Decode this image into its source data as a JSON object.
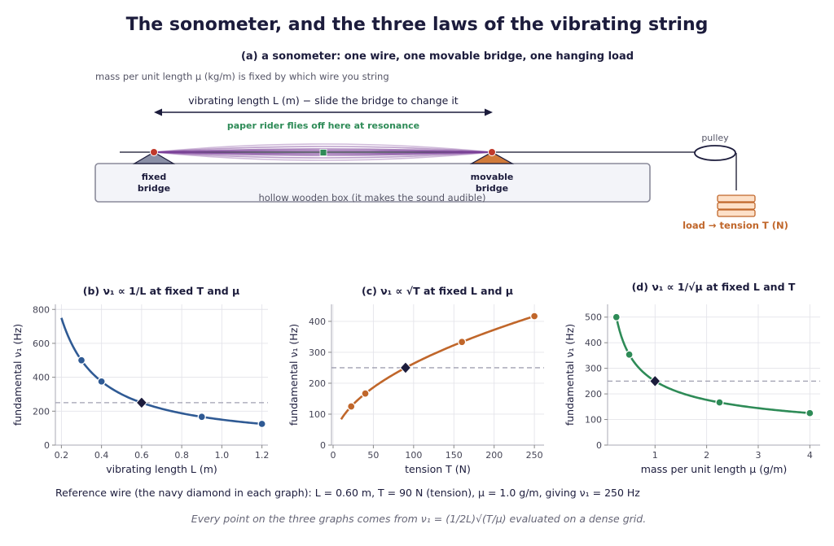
{
  "title": "The sonometer, and the three laws of the vibrating string",
  "sonometer": {
    "panel_title": "(a)  a sonometer: one wire, one movable bridge, one hanging load",
    "mass_note": "mass per unit length μ (kg/m) is fixed by which wire you string",
    "length_label": "vibrating length L (m)  −  slide the bridge to change it",
    "rider_note": "paper rider flies off here at resonance",
    "fixed_bridge": [
      "fixed",
      "bridge"
    ],
    "movable_bridge": [
      "movable",
      "bridge"
    ],
    "box_label": "hollow wooden box (it makes the sound audible)",
    "pulley_label": "pulley",
    "load_label": "load  →  tension T (N)"
  },
  "colors": {
    "navy": "#1c1c3c",
    "blue": "#2f5a94",
    "orange": "#c0662a",
    "green": "#2e8b57",
    "purple": "#7b3f98",
    "reference_line": "#a0a0b0"
  },
  "chart_data": [
    {
      "type": "line",
      "panel": "b",
      "title": "(b)  ν₁ ∝ 1/L  at fixed T and μ",
      "xlabel": "vibrating length L (m)",
      "ylabel": "fundamental ν₁ (Hz)",
      "xlim": [
        0.17,
        1.23
      ],
      "ylim": [
        0,
        830
      ],
      "xticks": [
        0.2,
        0.4,
        0.6,
        0.8,
        1.0,
        1.2
      ],
      "xtick_labels": [
        "0.2",
        "0.4",
        "0.6",
        "0.8",
        "1.0",
        "1.2"
      ],
      "yticks": [
        0,
        200,
        400,
        600,
        800
      ],
      "reference_y": 250,
      "grid": true,
      "color": "#2f5a94",
      "curve_x_range": [
        0.2,
        1.2
      ],
      "points": [
        {
          "x": 0.3,
          "y": 500
        },
        {
          "x": 0.4,
          "y": 375
        },
        {
          "x": 0.9,
          "y": 166.7
        },
        {
          "x": 1.2,
          "y": 125
        }
      ],
      "reference_point": {
        "x": 0.6,
        "y": 250
      }
    },
    {
      "type": "line",
      "panel": "c",
      "title": "(c)  ν₁ ∝ √T  at fixed L and μ",
      "xlabel": "tension T (N)",
      "ylabel": "fundamental ν₁ (Hz)",
      "xlim": [
        -2,
        262
      ],
      "ylim": [
        0,
        455
      ],
      "xticks": [
        0,
        50,
        100,
        150,
        200,
        250
      ],
      "xtick_labels": [
        "0",
        "50",
        "100",
        "150",
        "200",
        "250"
      ],
      "yticks": [
        0,
        100,
        200,
        300,
        400
      ],
      "reference_y": 250,
      "grid": true,
      "color": "#c0662a",
      "curve_x_range": [
        10,
        250
      ],
      "points": [
        {
          "x": 22.5,
          "y": 125
        },
        {
          "x": 40,
          "y": 166.7
        },
        {
          "x": 160,
          "y": 333.3
        },
        {
          "x": 250,
          "y": 416.7
        }
      ],
      "reference_point": {
        "x": 90,
        "y": 250
      }
    },
    {
      "type": "line",
      "panel": "d",
      "title": "(d)  ν₁ ∝ 1/√μ  at fixed L and T",
      "xlabel": "mass per unit length μ (g/m)",
      "ylabel": "fundamental ν₁ (Hz)",
      "xlim": [
        0.08,
        4.2
      ],
      "ylim": [
        0,
        550
      ],
      "xticks": [
        1,
        2,
        3,
        4
      ],
      "xtick_labels": [
        "1",
        "2",
        "3",
        "4"
      ],
      "yticks": [
        0,
        100,
        200,
        300,
        400,
        500
      ],
      "reference_y": 250,
      "grid": true,
      "color": "#2e8b57",
      "curve_x_range": [
        0.25,
        4.0
      ],
      "points": [
        {
          "x": 0.25,
          "y": 500
        },
        {
          "x": 0.5,
          "y": 353.6
        },
        {
          "x": 2.25,
          "y": 166.7
        },
        {
          "x": 4.0,
          "y": 125
        }
      ],
      "reference_point": {
        "x": 1.0,
        "y": 250
      }
    }
  ],
  "footer": {
    "reference_note": "Reference wire (the navy diamond in each graph): L = 0.60 m, T = 90 N (tension), μ = 1.0 g/m, giving ν₁ = 250 Hz",
    "formula_note": "Every point on the three graphs comes from ν₁ = (1/2L)√(T/μ) evaluated on a dense grid."
  }
}
